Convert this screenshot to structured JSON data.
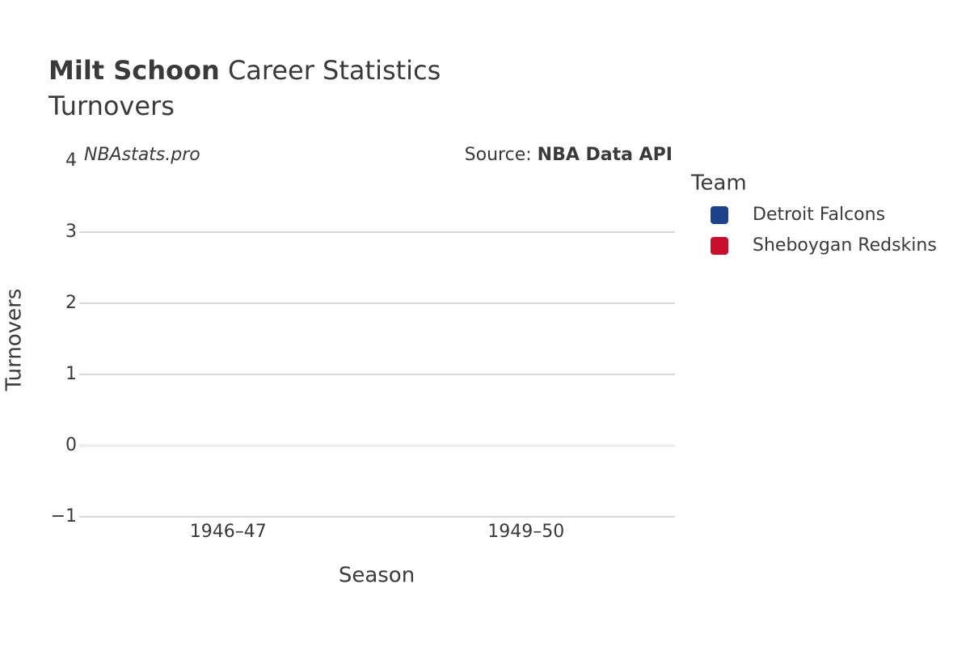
{
  "chart_data": {
    "type": "bar",
    "title": {
      "name": "Milt Schoon",
      "rest": "Career Statistics"
    },
    "subtitle": "Turnovers",
    "watermark": "NBAstats.pro",
    "source_label": "Source:",
    "source": "NBA Data API",
    "x_label": "Season",
    "y_label": "Turnovers",
    "legend_title": "Team",
    "categories": [
      "1946–47",
      "1949–50"
    ],
    "series": [
      {
        "name": "Detroit Falcons",
        "color": "#1d428a",
        "values": [
          null,
          null
        ]
      },
      {
        "name": "Sheboygan Redskins",
        "color": "#c8102e",
        "values": [
          null,
          null
        ]
      }
    ],
    "ylim": [
      -1,
      4
    ],
    "yticks": [
      {
        "value": -1,
        "label": "−1"
      },
      0,
      1,
      2,
      3,
      4
    ],
    "grid": true
  }
}
